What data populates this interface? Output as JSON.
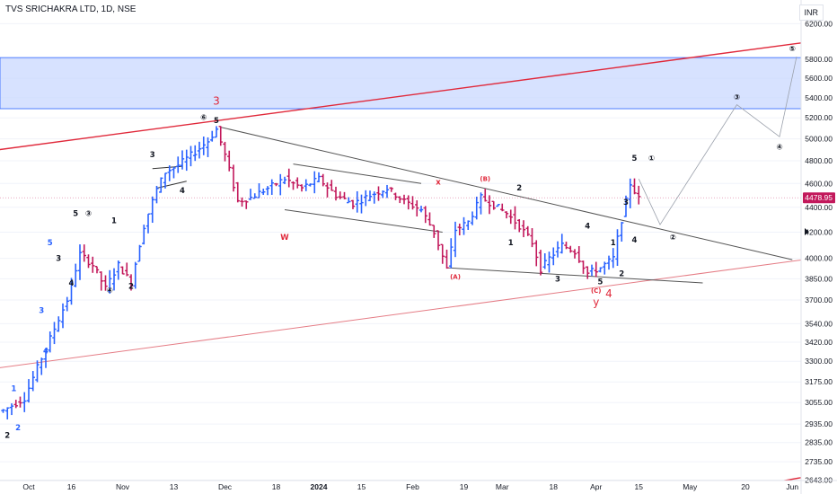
{
  "header": {
    "title": "TVS SRICHAKRA LTD, 1D, NSE",
    "currency": "INR"
  },
  "chart_data": {
    "type": "bar",
    "title": "TVS SRICHAKRA LTD, 1D, NSE",
    "price_scale": "log",
    "ylim": [
      2580,
      6500
    ],
    "last_price": 4478.95,
    "x_ticks": [
      {
        "label": "Oct",
        "d": 6
      },
      {
        "label": "16",
        "d": 16
      },
      {
        "label": "Nov",
        "d": 28
      },
      {
        "label": "13",
        "d": 40
      },
      {
        "label": "Dec",
        "d": 52
      },
      {
        "label": "18",
        "d": 64
      },
      {
        "label": "2024",
        "d": 74
      },
      {
        "label": "15",
        "d": 84
      },
      {
        "label": "Feb",
        "d": 96
      },
      {
        "label": "19",
        "d": 108
      },
      {
        "label": "Mar",
        "d": 117
      },
      {
        "label": "18",
        "d": 129
      },
      {
        "label": "Apr",
        "d": 139
      },
      {
        "label": "15",
        "d": 149
      },
      {
        "label": "May",
        "d": 161
      },
      {
        "label": "20",
        "d": 174
      },
      {
        "label": "Jun",
        "d": 185
      }
    ],
    "y_ticks": [
      "6200.00",
      "5800.00",
      "5600.00",
      "5400.00",
      "5200.00",
      "5000.00",
      "4800.00",
      "4600.00",
      "4400.00",
      "4200.00",
      "4000.00",
      "3850.00",
      "3700.00",
      "3540.00",
      "3420.00",
      "3300.00",
      "3175.00",
      "3055.00",
      "2935.00",
      "2835.00",
      "2735.00",
      "2643.00"
    ],
    "path_points": [
      [
        0,
        3010
      ],
      [
        5,
        3080
      ],
      [
        10,
        3380
      ],
      [
        15,
        3700
      ],
      [
        18,
        4030
      ],
      [
        21,
        3950
      ],
      [
        24,
        3780
      ],
      [
        27,
        3950
      ],
      [
        30,
        3820
      ],
      [
        33,
        4250
      ],
      [
        36,
        4550
      ],
      [
        38,
        4700
      ],
      [
        41,
        4760
      ],
      [
        45,
        4880
      ],
      [
        48,
        4980
      ],
      [
        50,
        5090
      ],
      [
        52,
        4850
      ],
      [
        55,
        4450
      ],
      [
        58,
        4480
      ],
      [
        62,
        4560
      ],
      [
        66,
        4640
      ],
      [
        70,
        4560
      ],
      [
        74,
        4640
      ],
      [
        78,
        4500
      ],
      [
        82,
        4430
      ],
      [
        86,
        4500
      ],
      [
        90,
        4560
      ],
      [
        94,
        4450
      ],
      [
        98,
        4380
      ],
      [
        101,
        4200
      ],
      [
        104,
        3920
      ],
      [
        106,
        4220
      ],
      [
        109,
        4280
      ],
      [
        112,
        4480
      ],
      [
        115,
        4420
      ],
      [
        118,
        4350
      ],
      [
        121,
        4250
      ],
      [
        124,
        4120
      ],
      [
        126,
        3920
      ],
      [
        128,
        4000
      ],
      [
        131,
        4100
      ],
      [
        134,
        4050
      ],
      [
        137,
        3890
      ],
      [
        140,
        3930
      ],
      [
        143,
        4000
      ],
      [
        145,
        4300
      ],
      [
        147,
        4600
      ],
      [
        149,
        4470
      ]
    ],
    "zone": {
      "low": 5290,
      "high": 5820
    },
    "trendlines": [
      {
        "name": "upper-red",
        "color": "#e0293b",
        "x1": -1,
        "y1": 4900,
        "x2": 190,
        "y2": 6000
      },
      {
        "name": "lower-red",
        "color": "#e57d86",
        "x1": -1,
        "y1": 3260,
        "x2": 190,
        "y2": 4000
      },
      {
        "name": "triangle-top",
        "color": "#555555",
        "x1": 51,
        "y1": 5110,
        "x2": 185,
        "y2": 3990
      },
      {
        "name": "triangle-bottom",
        "color": "#555555",
        "x1": 104,
        "y1": 3930,
        "x2": 164,
        "y2": 3820
      },
      {
        "name": "w-top",
        "color": "#555555",
        "x1": 68,
        "y1": 4770,
        "x2": 98,
        "y2": 4600
      },
      {
        "name": "w-bottom",
        "color": "#555555",
        "x1": 66,
        "y1": 4380,
        "x2": 103,
        "y2": 4200
      },
      {
        "name": "flag-top",
        "color": "#333333",
        "x1": 35,
        "y1": 4730,
        "x2": 42,
        "y2": 4750
      },
      {
        "name": "flag-bottom",
        "color": "#333333",
        "x1": 36,
        "y1": 4560,
        "x2": 43,
        "y2": 4620
      },
      {
        "name": "bottom-right-red",
        "color": "#e0293b",
        "x1": 183,
        "y1": 2640,
        "x2": 191,
        "y2": 2670
      }
    ],
    "projection": [
      [
        149,
        4640
      ],
      [
        154,
        4260
      ],
      [
        172,
        5330
      ],
      [
        182,
        5020
      ],
      [
        186,
        5830
      ]
    ],
    "annotations": [
      {
        "text": "2",
        "d": 1,
        "p": 2860,
        "c": "#131722"
      },
      {
        "text": "1",
        "d": 2.5,
        "p": 3120,
        "c": "#2962ff"
      },
      {
        "text": "2",
        "d": 3.5,
        "p": 2900,
        "c": "#2962ff"
      },
      {
        "text": "3",
        "d": 9,
        "p": 3610,
        "c": "#2962ff"
      },
      {
        "text": "4",
        "d": 10,
        "p": 3350,
        "c": "#2962ff"
      },
      {
        "text": "5",
        "d": 11,
        "p": 4100,
        "c": "#2962ff"
      },
      {
        "text": "3",
        "d": 13,
        "p": 3980,
        "c": "#131722"
      },
      {
        "text": "4",
        "d": 16,
        "p": 3800,
        "c": "#131722"
      },
      {
        "text": "5",
        "d": 17,
        "p": 4330,
        "c": "#131722"
      },
      {
        "text": "③",
        "d": 20,
        "p": 4330,
        "c": "#131722"
      },
      {
        "text": "1",
        "d": 26,
        "p": 4270,
        "c": "#131722"
      },
      {
        "text": "④",
        "d": 25,
        "p": 3750,
        "c": "#131722"
      },
      {
        "text": "2",
        "d": 30,
        "p": 3780,
        "c": "#131722"
      },
      {
        "text": "3",
        "d": 35,
        "p": 4830,
        "c": "#131722"
      },
      {
        "text": "4",
        "d": 42,
        "p": 4520,
        "c": "#131722"
      },
      {
        "text": "⑥",
        "d": 47,
        "p": 5180,
        "c": "#131722"
      },
      {
        "text": "5",
        "d": 50,
        "p": 5150,
        "c": "#131722"
      },
      {
        "text": "3",
        "d": 50,
        "p": 5330,
        "c": "#e0293b",
        "big": true
      },
      {
        "text": "W",
        "d": 66,
        "p": 4140,
        "c": "#e0293b"
      },
      {
        "text": "x",
        "d": 102,
        "p": 4590,
        "c": "#e0293b"
      },
      {
        "text": "(B)",
        "d": 113,
        "p": 4620,
        "c": "#e0293b",
        "small": true
      },
      {
        "text": "2",
        "d": 121,
        "p": 4540,
        "c": "#131722"
      },
      {
        "text": "1",
        "d": 119,
        "p": 4100,
        "c": "#131722"
      },
      {
        "text": "(A)",
        "d": 106,
        "p": 3850,
        "c": "#e0293b",
        "small": true
      },
      {
        "text": "3",
        "d": 130,
        "p": 3830,
        "c": "#131722"
      },
      {
        "text": "4",
        "d": 137,
        "p": 4230,
        "c": "#131722"
      },
      {
        "text": "1",
        "d": 143,
        "p": 4100,
        "c": "#131722"
      },
      {
        "text": "2",
        "d": 145,
        "p": 3870,
        "c": "#131722"
      },
      {
        "text": "5",
        "d": 140,
        "p": 3810,
        "c": "#131722"
      },
      {
        "text": "(C)",
        "d": 139,
        "p": 3750,
        "c": "#e0293b",
        "small": true
      },
      {
        "text": "4",
        "d": 142,
        "p": 3720,
        "c": "#e0293b",
        "big": true
      },
      {
        "text": "y",
        "d": 139,
        "p": 3660,
        "c": "#e0293b",
        "big": true
      },
      {
        "text": "3",
        "d": 146,
        "p": 4420,
        "c": "#131722"
      },
      {
        "text": "4",
        "d": 148,
        "p": 4120,
        "c": "#131722"
      },
      {
        "text": "5",
        "d": 148,
        "p": 4800,
        "c": "#131722"
      },
      {
        "text": "①",
        "d": 152,
        "p": 4800,
        "c": "#131722"
      },
      {
        "text": "②",
        "d": 157,
        "p": 4140,
        "c": "#131722"
      },
      {
        "text": "③",
        "d": 172,
        "p": 5380,
        "c": "#131722"
      },
      {
        "text": "④",
        "d": 182,
        "p": 4900,
        "c": "#131722"
      },
      {
        "text": "⑤",
        "d": 185,
        "p": 5890,
        "c": "#131722"
      },
      {
        "text": "5",
        "d": 189,
        "p": 5890,
        "c": "#e0293b",
        "big": true
      }
    ],
    "colors": {
      "up": "#2962ff",
      "down": "#c2185b",
      "zone": "#c9d8ff",
      "zone_border": "#2962ff",
      "price_tag": "#c2185b",
      "grid": "#f0f3fa"
    }
  }
}
